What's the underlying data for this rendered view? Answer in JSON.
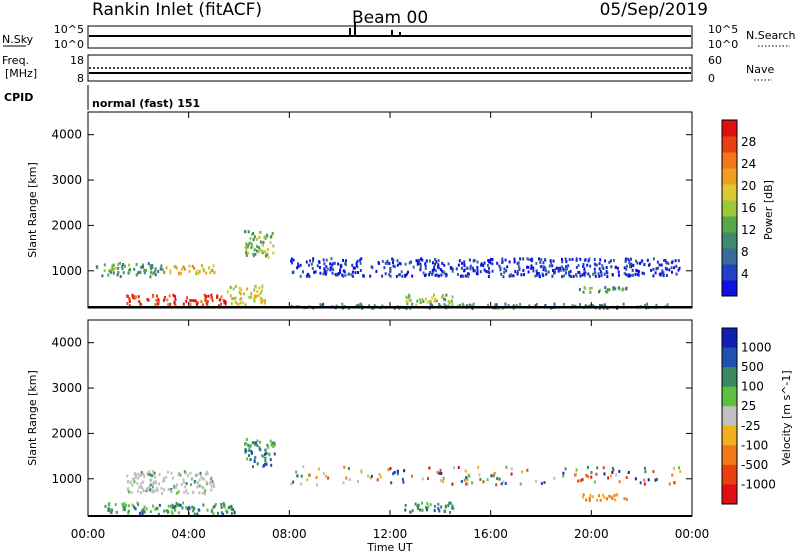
{
  "header": {
    "station": "Rankin Inlet (fitACF)",
    "beam": "Beam 00",
    "date": "05/Sep/2019"
  },
  "panel_nsky": {
    "left_label": "N.Sky",
    "right_label": "N.Search",
    "left_ticks": [
      "10^5",
      "10^0"
    ],
    "right_ticks": [
      "10^5",
      "10^0"
    ]
  },
  "panel_freq": {
    "left_label_1": "Freq.",
    "left_label_2": "[MHz]",
    "right_label": "Nave",
    "left_ticks": [
      "18",
      "8"
    ],
    "right_ticks": [
      "60",
      "0"
    ]
  },
  "panel_cpid": {
    "label": "CPID",
    "mode": "normal (fast) 151"
  },
  "chart_data": [
    {
      "type": "heatmap",
      "quantity": "Power",
      "ylabel": "Slant Range [km]",
      "ylim": [
        180,
        4500
      ],
      "yticks": [
        1000,
        2000,
        3000,
        4000
      ],
      "xlabel": "Time UT",
      "x_ticks": [
        "00:00",
        "04:00",
        "08:00",
        "12:00",
        "16:00",
        "20:00",
        "00:00"
      ],
      "xlim_hours": [
        0,
        24
      ],
      "colorbar": {
        "label": "Power [dB]",
        "ticks": [
          "4",
          "8",
          "12",
          "16",
          "20",
          "24",
          "28"
        ],
        "colors": [
          "#1010e0",
          "#2040c8",
          "#3a6a9a",
          "#3e8a6c",
          "#58a84a",
          "#9cc83c",
          "#dcc830",
          "#f0a020",
          "#f07818",
          "#e84010",
          "#e01010"
        ]
      },
      "regions": [
        {
          "t": [
            0.3,
            3.0
          ],
          "r": [
            900,
            1200
          ],
          "level": 0.35
        },
        {
          "t": [
            3.0,
            5.0
          ],
          "r": [
            950,
            1150
          ],
          "level": 0.62
        },
        {
          "t": [
            1.5,
            5.5
          ],
          "r": [
            250,
            500
          ],
          "level": 0.92
        },
        {
          "t": [
            5.5,
            7.0
          ],
          "r": [
            280,
            700
          ],
          "level": 0.55
        },
        {
          "t": [
            6.2,
            7.4
          ],
          "r": [
            1300,
            1900
          ],
          "level": 0.45
        },
        {
          "t": [
            12.5,
            14.5
          ],
          "r": [
            280,
            500
          ],
          "level": 0.5
        },
        {
          "t": [
            19.5,
            21.5
          ],
          "r": [
            550,
            700
          ],
          "level": 0.38
        },
        {
          "t": [
            8.0,
            23.0
          ],
          "r": [
            200,
            300
          ],
          "level": 0.3
        },
        {
          "t": [
            8.0,
            23.5
          ],
          "r": [
            900,
            1300
          ],
          "level": 0.1
        }
      ]
    },
    {
      "type": "heatmap",
      "quantity": "Velocity",
      "ylabel": "Slant Range [km]",
      "ylim": [
        180,
        4500
      ],
      "yticks": [
        1000,
        2000,
        3000,
        4000
      ],
      "xlabel": "Time UT",
      "x_ticks": [
        "00:00",
        "04:00",
        "08:00",
        "12:00",
        "16:00",
        "20:00",
        "00:00"
      ],
      "xlim_hours": [
        0,
        24
      ],
      "colorbar": {
        "label": "Velocity [m s^-1]",
        "ticks": [
          "1000",
          "500",
          "100",
          "25",
          "-25",
          "-100",
          "-500",
          "-1000"
        ],
        "colors": [
          "#1020b0",
          "#2050b0",
          "#3a8860",
          "#5ec040",
          "#c0c0c0",
          "#f0b020",
          "#f07818",
          "#e84010",
          "#e01010"
        ]
      },
      "regions": [
        {
          "t": [
            1.5,
            5.0
          ],
          "r": [
            700,
            1200
          ],
          "level": "ground"
        },
        {
          "t": [
            0.5,
            5.8
          ],
          "r": [
            250,
            500
          ],
          "level": "green"
        },
        {
          "t": [
            6.2,
            7.4
          ],
          "r": [
            1300,
            1900
          ],
          "level": "green"
        },
        {
          "t": [
            12.5,
            14.5
          ],
          "r": [
            280,
            500
          ],
          "level": "green"
        },
        {
          "t": [
            19.5,
            21.5
          ],
          "r": [
            550,
            700
          ],
          "level": "orange"
        },
        {
          "t": [
            8.0,
            23.5
          ],
          "r": [
            900,
            1300
          ],
          "level": "mixed"
        }
      ]
    }
  ]
}
